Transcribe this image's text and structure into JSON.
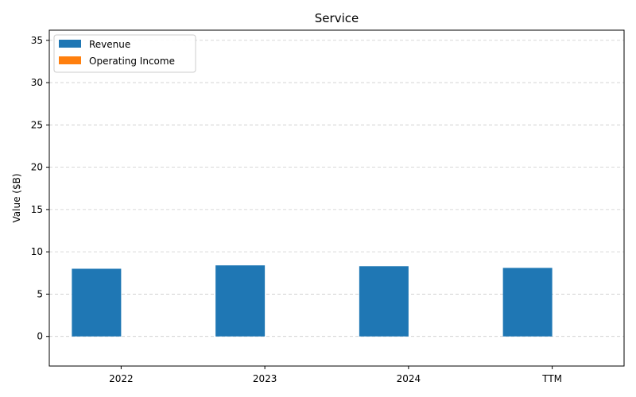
{
  "chart_data": {
    "type": "bar",
    "title": "Service",
    "xlabel": "",
    "ylabel": "Value ($B)",
    "categories": [
      "2022",
      "2023",
      "2024",
      "TTM"
    ],
    "series": [
      {
        "name": "Revenue",
        "values": [
          8.0,
          8.4,
          8.3,
          8.1
        ],
        "color": "#1f77b4"
      },
      {
        "name": "Operating Income",
        "values": [
          0,
          0,
          0,
          0
        ],
        "color": "#ff7f0e"
      }
    ],
    "ylim": [
      -3.5,
      36.2
    ],
    "yticks": [
      "0",
      "5",
      "10",
      "15",
      "20",
      "25",
      "30",
      "35"
    ],
    "grid": true,
    "legend_position": "top-left"
  }
}
